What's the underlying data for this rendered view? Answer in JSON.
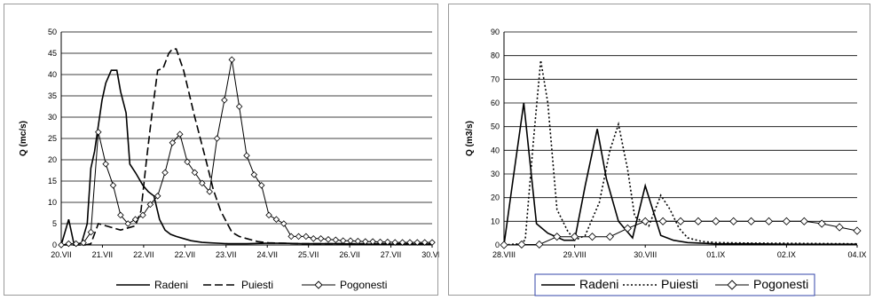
{
  "chart_data": [
    {
      "type": "line",
      "ylabel": "Q (mc/s)",
      "xlabel": "",
      "ylim": [
        0,
        50
      ],
      "yticks": [
        0,
        5,
        10,
        15,
        20,
        25,
        30,
        35,
        40,
        45,
        50
      ],
      "grid": "horizontal",
      "legend_position": "bottom",
      "x_tick_labels": [
        "20.VII",
        "21.VII",
        "22.VII",
        "22.VII",
        "23.VII",
        "24.VII",
        "25.VII",
        "26.VII",
        "27.VII",
        "30.VII"
      ],
      "x_range": [
        0,
        10
      ],
      "series": [
        {
          "name": "Radeni",
          "style": "solid",
          "color": "#000000",
          "x": [
            0,
            0.2,
            0.35,
            0.55,
            0.7,
            0.8,
            0.9,
            1.0,
            1.1,
            1.2,
            1.35,
            1.5,
            1.6,
            1.75,
            1.85,
            2.0,
            2.2,
            2.35,
            2.5,
            2.65,
            2.8,
            2.95,
            3.1,
            3.3,
            3.5,
            3.8,
            4.0,
            4.5,
            5.0,
            5.5,
            6.0,
            6.5,
            7.0,
            7.5,
            8.0,
            8.5,
            9.0,
            9.5,
            10.0
          ],
          "y": [
            0,
            6,
            0,
            0.5,
            5,
            18,
            22,
            28,
            34,
            38,
            41,
            41,
            36,
            31,
            19,
            17,
            14,
            12.5,
            11.5,
            6,
            3.5,
            2.5,
            2,
            1.5,
            1,
            0.6,
            0.5,
            0.3,
            0.3,
            0.4,
            0.4,
            0.3,
            0.3,
            0.3,
            0.2,
            0.2,
            0.2,
            0.2,
            0.2
          ]
        },
        {
          "name": "Puiesti",
          "style": "dashed",
          "color": "#000000",
          "x": [
            0,
            0.3,
            0.5,
            0.65,
            0.8,
            1.0,
            1.2,
            1.4,
            1.6,
            1.8,
            2.0,
            2.15,
            2.3,
            2.45,
            2.6,
            2.75,
            2.9,
            3.0,
            3.1,
            3.3,
            3.6,
            3.9,
            4.1,
            4.3,
            4.6,
            4.8,
            5.0,
            5.3,
            5.6,
            6.0,
            6.5,
            7.0,
            7.5,
            8.0,
            8.5,
            9.0,
            9.5,
            10.0
          ],
          "y": [
            0,
            0,
            0,
            0,
            0.3,
            5,
            4.5,
            4,
            3.5,
            4,
            4.5,
            8,
            20,
            31,
            41,
            41.5,
            45,
            46,
            46,
            41,
            30,
            20,
            13,
            8,
            3,
            2,
            1.5,
            0.8,
            0.5,
            0.4,
            0.3,
            0.3,
            0.3,
            0.3,
            0.3,
            0.3,
            0.3,
            0.3
          ]
        },
        {
          "name": "Pogonesti",
          "style": "solid-diamond",
          "color": "#000000",
          "x": [
            0,
            0.2,
            0.4,
            0.6,
            0.8,
            1.0,
            1.2,
            1.4,
            1.6,
            1.8,
            2.0,
            2.2,
            2.4,
            2.6,
            2.8,
            3.0,
            3.2,
            3.4,
            3.6,
            3.8,
            4.0,
            4.2,
            4.4,
            4.6,
            4.8,
            5.0,
            5.2,
            5.4,
            5.6,
            5.8,
            6.0,
            6.2,
            6.4,
            6.6,
            6.8,
            7.0,
            7.2,
            7.4,
            7.6,
            7.8,
            8.0,
            8.2,
            8.4,
            8.6,
            8.8,
            9.0,
            9.2,
            9.4,
            9.6,
            9.8,
            10.0
          ],
          "y": [
            0,
            0.3,
            0.3,
            0.5,
            3,
            26.5,
            19,
            14,
            7,
            5,
            6,
            7,
            9.5,
            11.5,
            17,
            24,
            26,
            19.5,
            17,
            14.5,
            12.5,
            25,
            34,
            43.5,
            32.5,
            21,
            16.5,
            14,
            7,
            6,
            5,
            2,
            2,
            2,
            1.5,
            1.5,
            1.3,
            1.2,
            1,
            1,
            0.9,
            0.8,
            0.8,
            0.7,
            0.7,
            0.6,
            0.6,
            0.6,
            0.6,
            0.6,
            0.6
          ]
        }
      ]
    },
    {
      "type": "line",
      "ylabel": "Q (m3/s)",
      "xlabel": "",
      "ylim": [
        0,
        90
      ],
      "yticks": [
        0,
        10,
        20,
        30,
        40,
        50,
        60,
        70,
        80,
        90
      ],
      "grid": "horizontal",
      "legend_position": "bottom",
      "x_tick_labels": [
        "28.VIII",
        "29.VIII",
        "30.VIII",
        "01.IX",
        "02.IX",
        "04.IX"
      ],
      "x_range": [
        0,
        5
      ],
      "series": [
        {
          "name": "Radeni",
          "style": "solid",
          "color": "#000000",
          "x": [
            0,
            0.13,
            0.28,
            0.46,
            0.62,
            0.85,
            1.0,
            1.15,
            1.32,
            1.45,
            1.62,
            1.82,
            2.0,
            2.22,
            2.4,
            2.6,
            3.0,
            3.5,
            4.0,
            4.5,
            5.0
          ],
          "y": [
            0,
            28,
            60,
            9,
            5,
            2,
            2,
            25,
            49,
            28,
            10,
            3,
            25,
            4,
            2,
            1,
            0.5,
            0.5,
            0.3,
            0.3,
            0.3
          ]
        },
        {
          "name": "Puiesti",
          "style": "dotted",
          "color": "#000000",
          "x": [
            0,
            0.2,
            0.3,
            0.42,
            0.52,
            0.62,
            0.75,
            0.9,
            1.0,
            1.15,
            1.35,
            1.5,
            1.62,
            1.75,
            1.85,
            2.05,
            2.22,
            2.35,
            2.48,
            2.6,
            2.8,
            3.0,
            3.5,
            4.0,
            4.5,
            5.0
          ],
          "y": [
            0,
            0.5,
            2,
            45,
            78,
            60,
            15,
            6,
            2,
            4,
            18,
            40,
            51,
            32,
            12,
            8,
            21,
            15,
            7,
            3,
            1.5,
            1,
            0.8,
            0.7,
            0.6,
            0.5
          ]
        },
        {
          "name": "Pogonesti",
          "style": "solid-diamond",
          "color": "#000000",
          "x": [
            0,
            0.25,
            0.5,
            0.75,
            1.0,
            1.25,
            1.5,
            1.75,
            2.0,
            2.25,
            2.5,
            2.75,
            3.0,
            3.25,
            3.5,
            3.75,
            4.0,
            4.25,
            4.5,
            4.75,
            5.0
          ],
          "y": [
            0,
            0.2,
            0.2,
            3.5,
            3.5,
            3.5,
            3.5,
            7,
            10,
            10,
            10,
            10,
            10,
            10,
            10,
            10,
            10,
            10,
            9,
            7.5,
            6
          ]
        }
      ]
    }
  ]
}
